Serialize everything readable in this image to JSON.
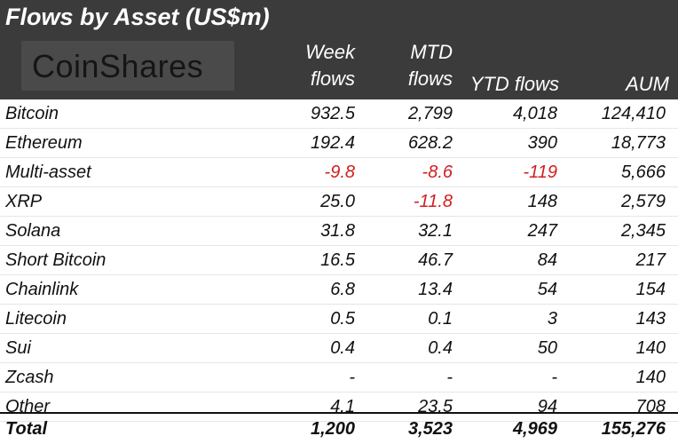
{
  "title": "Flows by Asset (US$m)",
  "logo_text": "CoinShares",
  "columns": {
    "week_line1": "Week",
    "week_line2": "flows",
    "mtd_line1": "MTD",
    "mtd_line2": "flows",
    "ytd": "YTD flows",
    "aum": "AUM"
  },
  "rows": [
    {
      "asset": "Bitcoin",
      "week": "932.5",
      "mtd": "2,799",
      "ytd": "4,018",
      "aum": "124,410"
    },
    {
      "asset": "Ethereum",
      "week": "192.4",
      "mtd": "628.2",
      "ytd": "390",
      "aum": "18,773"
    },
    {
      "asset": "Multi-asset",
      "week": "-9.8",
      "mtd": "-8.6",
      "ytd": "-119",
      "aum": "5,666"
    },
    {
      "asset": "XRP",
      "week": "25.0",
      "mtd": "-11.8",
      "ytd": "148",
      "aum": "2,579"
    },
    {
      "asset": "Solana",
      "week": "31.8",
      "mtd": "32.1",
      "ytd": "247",
      "aum": "2,345"
    },
    {
      "asset": "Short Bitcoin",
      "week": "16.5",
      "mtd": "46.7",
      "ytd": "84",
      "aum": "217"
    },
    {
      "asset": "Chainlink",
      "week": "6.8",
      "mtd": "13.4",
      "ytd": "54",
      "aum": "154"
    },
    {
      "asset": "Litecoin",
      "week": "0.5",
      "mtd": "0.1",
      "ytd": "3",
      "aum": "143"
    },
    {
      "asset": "Sui",
      "week": "0.4",
      "mtd": "0.4",
      "ytd": "50",
      "aum": "140"
    },
    {
      "asset": "Zcash",
      "week": "-",
      "mtd": "-",
      "ytd": "-",
      "aum": "140"
    },
    {
      "asset": "Other",
      "week": "4.1",
      "mtd": "23.5",
      "ytd": "94",
      "aum": "708"
    }
  ],
  "total": {
    "asset": "Total",
    "week": "1,200",
    "mtd": "3,523",
    "ytd": "4,969",
    "aum": "155,276"
  },
  "colors": {
    "header_bg": "#3b3b3b",
    "negative": "#d21f1f",
    "text": "#111111"
  }
}
